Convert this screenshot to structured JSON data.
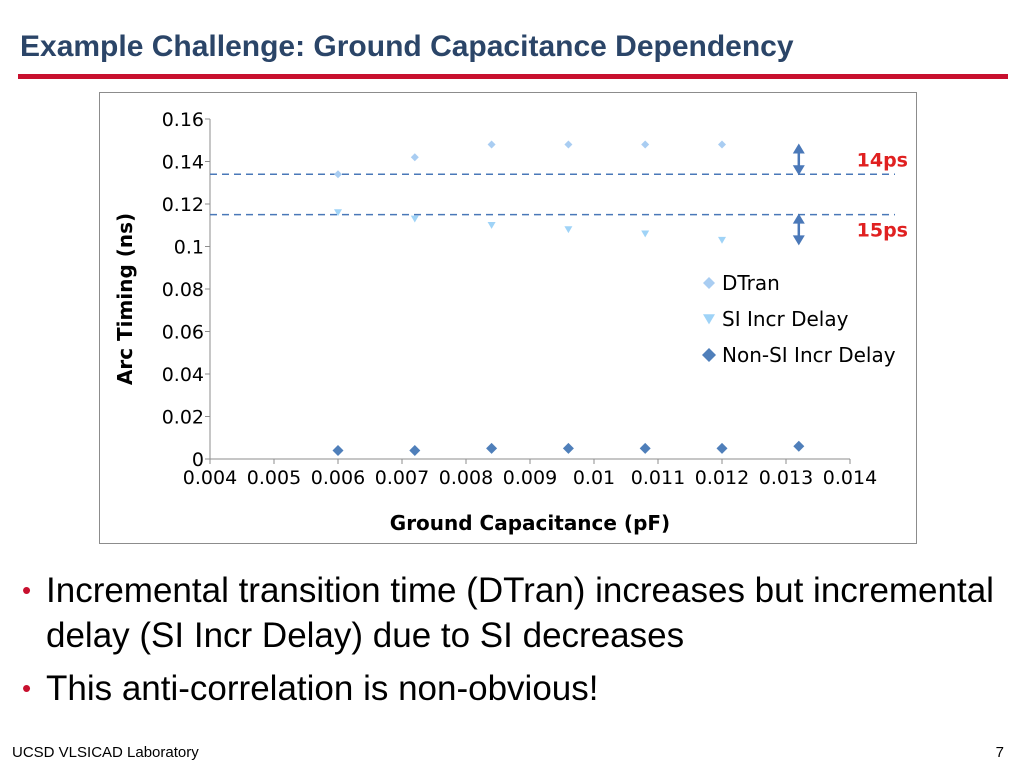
{
  "slide": {
    "title": "Example Challenge: Ground Capacitance Dependency",
    "bullets": [
      "Incremental transition time (DTran) increases but incremental delay (SI Incr Delay) due to SI decreases",
      "This anti-correlation is non-obvious!"
    ],
    "footer_left": "UCSD VLSICAD Laboratory",
    "page_number": "7"
  },
  "colors": {
    "accent": "#c8102e",
    "title": "#2b4568",
    "dtran": "#a9cdf2",
    "si": "#9fd3f7",
    "nonsi": "#4f7fba",
    "guide": "#4a78b8",
    "annotation": "#e02020"
  },
  "chart_data": {
    "type": "scatter",
    "xlabel": "Ground Capacitance (pF)",
    "ylabel": "Arc Timing (ns)",
    "xlim": [
      0.004,
      0.014
    ],
    "ylim": [
      0,
      0.16
    ],
    "x_ticks": [
      "0.004",
      "0.005",
      "0.006",
      "0.007",
      "0.008",
      "0.009",
      "0.01",
      "0.011",
      "0.012",
      "0.013",
      "0.014"
    ],
    "y_ticks": [
      "0",
      "0.02",
      "0.04",
      "0.06",
      "0.08",
      "0.1",
      "0.12",
      "0.14",
      "0.16"
    ],
    "grid": false,
    "legend_position": "right",
    "series": [
      {
        "name": "DTran",
        "marker": "diamond",
        "color": "#a9cdf2",
        "points": [
          [
            0.006,
            0.134
          ],
          [
            0.0072,
            0.142
          ],
          [
            0.0084,
            0.148
          ],
          [
            0.0096,
            0.148
          ],
          [
            0.0108,
            0.148
          ],
          [
            0.012,
            0.148
          ]
        ]
      },
      {
        "name": "SI Incr Delay",
        "marker": "triangle-down",
        "color": "#9fd3f7",
        "points": [
          [
            0.006,
            0.116
          ],
          [
            0.0072,
            0.113
          ],
          [
            0.0084,
            0.11
          ],
          [
            0.0096,
            0.108
          ],
          [
            0.0108,
            0.106
          ],
          [
            0.012,
            0.103
          ]
        ]
      },
      {
        "name": "Non-SI Incr Delay",
        "marker": "diamond",
        "color": "#4f7fba",
        "points": [
          [
            0.006,
            0.004
          ],
          [
            0.0072,
            0.004
          ],
          [
            0.0084,
            0.005
          ],
          [
            0.0096,
            0.005
          ],
          [
            0.0108,
            0.005
          ],
          [
            0.012,
            0.005
          ],
          [
            0.0132,
            0.006
          ]
        ]
      }
    ],
    "reference_lines": [
      {
        "y": 0.134,
        "style": "dashed"
      },
      {
        "y": 0.115,
        "style": "dashed"
      }
    ],
    "annotations": [
      {
        "text": "14ps",
        "x": 0.0132,
        "y_from": 0.134,
        "y_to": 0.148
      },
      {
        "text": "15ps",
        "x": 0.0132,
        "y_from": 0.101,
        "y_to": 0.115
      }
    ]
  }
}
